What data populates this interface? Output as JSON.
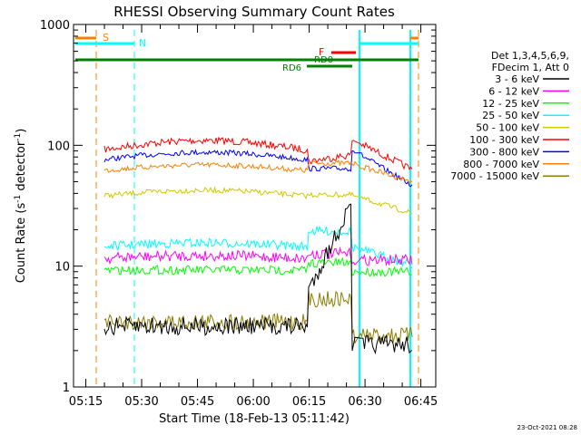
{
  "chart_data": {
    "type": "line",
    "title": "RHESSI Observing Summary Count Rates",
    "xlabel": "Start Time (18-Feb-13 05:11:42)",
    "ylabel": "Count Rate (s⁻¹ detector⁻¹)",
    "ylabel_parts": [
      "Count Rate (s",
      "-1",
      " detector",
      "-1",
      ")"
    ],
    "y_scale": "log",
    "ylim": [
      1,
      1000
    ],
    "xlim": [
      "05:11:42",
      "06:49:00"
    ],
    "y_ticks": [
      "1",
      "10",
      "100",
      "1000"
    ],
    "x_ticks": [
      "05:15",
      "05:30",
      "05:45",
      "06:00",
      "06:15",
      "06:30",
      "06:45"
    ],
    "timestamp": "23-Oct-2021 08:28",
    "legend_header": [
      "Det 1,3,4,5,6,9,",
      "FDecim 1, Att 0"
    ],
    "series": [
      {
        "name": "3 - 6 keV",
        "color": "#000000"
      },
      {
        "name": "6 - 12 keV",
        "color": "#ff00ff"
      },
      {
        "name": "12 - 25 keV",
        "color": "#00ff00"
      },
      {
        "name": "25 - 50 keV",
        "color": "#00ffff"
      },
      {
        "name": "50 - 100 keV",
        "color": "#d2c800"
      },
      {
        "name": "100 - 300 keV",
        "color": "#ff0000"
      },
      {
        "name": "300 - 800 keV",
        "color": "#0000ff"
      },
      {
        "name": "800 - 7000 keV",
        "color": "#ff8000"
      },
      {
        "name": "7000 - 15000 keV",
        "color": "#8b7d00"
      }
    ],
    "flags": [
      {
        "label": "S",
        "color": "#ff8000"
      },
      {
        "label": "N",
        "color": "#00ffff"
      },
      {
        "label": "F",
        "color": "#ff0000"
      },
      {
        "label": "RD0",
        "color": "#008000"
      },
      {
        "label": "RD6",
        "color": "#008000"
      }
    ]
  }
}
